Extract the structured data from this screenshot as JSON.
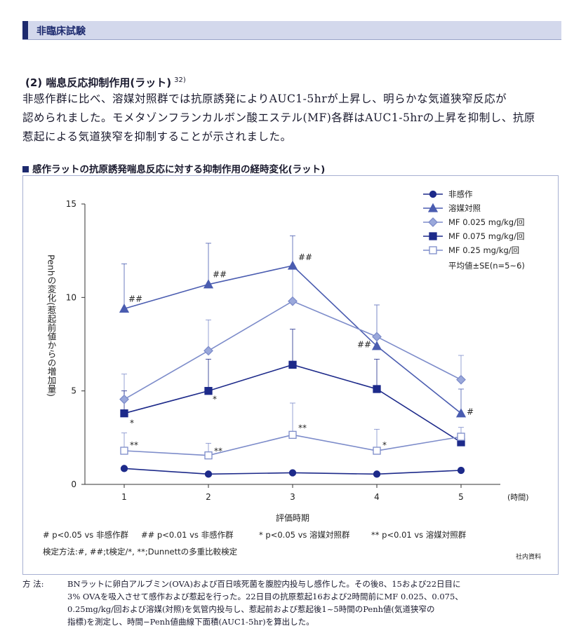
{
  "header": {
    "title": "非臨床試験"
  },
  "section": {
    "heading": "(2) 喘息反応抑制作用(ラット)",
    "ref": "32)"
  },
  "body_lines": [
    "非感作群に比べ、溶媒対照群では抗原誘発によりAUC1-5hrが上昇し、明らかな気道狭窄反応が",
    "認められました。モメタゾンフランカルボン酸エステル(MF)各群はAUC1-5hrの上昇を抑制し、抗原",
    "惹起による気道狭窄を抑制することが示されました。"
  ],
  "chart_heading": "感作ラットの抗原誘発喘息反応に対する抑制作用の経時変化(ラット)",
  "chart_data": {
    "type": "line",
    "x": [
      1,
      2,
      3,
      4,
      5
    ],
    "xlabel": "評価時期",
    "xunit": "(時間)",
    "ylabel": "Penhの変化(惹起前値からの増加量)",
    "ylim": [
      0,
      15
    ],
    "yticks": [
      0,
      5,
      10,
      15
    ],
    "series": [
      {
        "name": "非感作",
        "marker": "circle",
        "fill": "#1d2a8a",
        "stroke": "#1d2a8a",
        "values": [
          0.85,
          0.55,
          0.62,
          0.55,
          0.75
        ],
        "err": [
          0,
          0,
          0,
          0,
          0
        ],
        "annotations": [
          "",
          "",
          "",
          "",
          ""
        ]
      },
      {
        "name": "溶媒対照",
        "marker": "triangle",
        "fill": "#4a5cb0",
        "stroke": "#4a5cb0",
        "values": [
          9.4,
          10.7,
          11.7,
          7.4,
          3.8
        ],
        "err": [
          2.4,
          2.2,
          1.6,
          2.2,
          1.3
        ],
        "annotations": [
          "##",
          "##",
          "##",
          "##",
          "#"
        ]
      },
      {
        "name": "MF 0.025 mg/kg/回",
        "marker": "diamond",
        "fill": "#9aa8db",
        "stroke": "#7d8cca",
        "values": [
          4.55,
          7.15,
          9.8,
          7.9,
          5.6
        ],
        "err": [
          1.35,
          1.65,
          1.75,
          1.7,
          1.3
        ],
        "annotations": [
          "",
          "",
          "",
          "",
          ""
        ]
      },
      {
        "name": "MF 0.075 mg/kg/回",
        "marker": "square",
        "fill": "#1d2a8a",
        "stroke": "#1d2a8a",
        "values": [
          3.8,
          5.0,
          6.4,
          5.1,
          2.25
        ],
        "err": [
          1.2,
          1.7,
          1.9,
          1.6,
          0.4
        ],
        "annotations": [
          "*",
          "*",
          "",
          "",
          ""
        ]
      },
      {
        "name": "MF 0.25 mg/kg/回",
        "marker": "square-open",
        "fill": "#ffffff",
        "stroke": "#7d8cca",
        "values": [
          1.8,
          1.55,
          2.65,
          1.8,
          2.55
        ],
        "err": [
          0.95,
          0.65,
          1.7,
          1.15,
          0.5
        ],
        "annotations": [
          "**",
          "**",
          "**",
          "*",
          ""
        ]
      }
    ],
    "legend_note": "平均値±SE(n=5~6)",
    "legend_position": "top-right",
    "footnotes": [
      "# p<0.05 vs 非感作群",
      "## p<0.01 vs 非感作群",
      "* p<0.05 vs 溶媒対照群",
      "** p<0.01 vs 溶媒対照群"
    ],
    "test_method": "検定方法:#, ##;t検定/*, **;Dunnettの多重比較検定",
    "source": "社内資料"
  },
  "method": {
    "label": "方 法:",
    "lines": [
      "BNラットに卵白アルブミン(OVA)および百日咳死菌を腹腔内投与し感作した。その後8、15および22日目に",
      "3% OVAを吸入させて感作および惹起を行った。22日目の抗原惹起16および2時間前にMF 0.025、0.075、",
      "0.25mg/kg/回および溶媒(対照)を気管内投与し、惹起前および惹起後1~5時間のPenh値(気道狭窄の",
      "指標)を測定し、時間−Penh値曲線下面積(AUC1-5hr)を算出した。"
    ]
  }
}
